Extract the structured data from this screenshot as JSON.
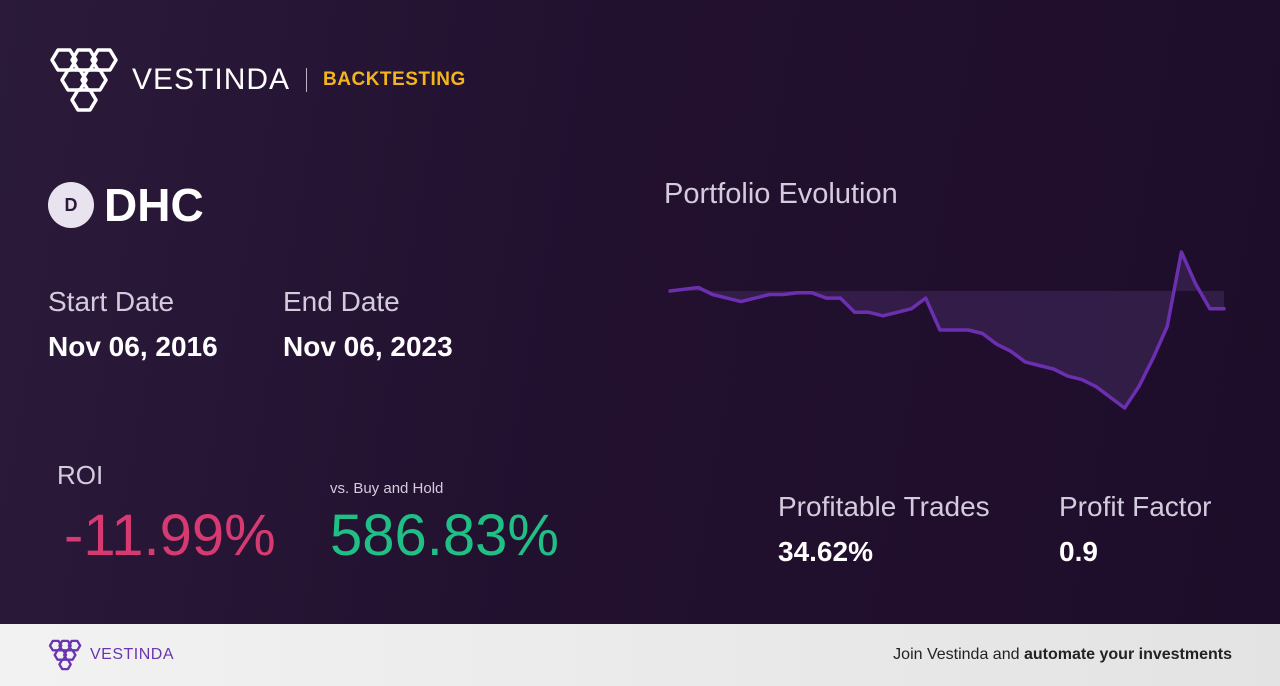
{
  "header": {
    "brand": "VESTINDA",
    "section": "BACKTESTING"
  },
  "asset": {
    "badge": "D",
    "symbol": "DHC"
  },
  "dates": {
    "start_label": "Start Date",
    "start_value": "Nov 06, 2016",
    "end_label": "End Date",
    "end_value": "Nov 06, 2023"
  },
  "performance": {
    "roi_label": "ROI",
    "roi_value": "-11.99%",
    "bh_label": "vs. Buy and Hold",
    "bh_value": "586.83%",
    "trades_label": "Profitable Trades",
    "trades_value": "34.62%",
    "pf_label": "Profit Factor",
    "pf_value": "0.9"
  },
  "chart_data": {
    "type": "area",
    "title": "Portfolio Evolution",
    "baseline": 0,
    "values": [
      0,
      0.5,
      1,
      -1,
      -2,
      -3,
      -2,
      -1,
      -1,
      -0.5,
      -0.5,
      -2,
      -2,
      -6,
      -6,
      -7,
      -6,
      -5,
      -2,
      -11,
      -11,
      -11,
      -12,
      -15,
      -17,
      -20,
      -21,
      -22,
      -24,
      -25,
      -27,
      -30,
      -33,
      -27,
      -19,
      -10,
      11,
      2,
      -5,
      -5
    ],
    "colors": {
      "line": "#6b2fb0",
      "fill": "#3a2352"
    }
  },
  "footer": {
    "brand": "VESTINDA",
    "cta_prefix": "Join Vestinda and ",
    "cta_bold": "automate your investments"
  }
}
